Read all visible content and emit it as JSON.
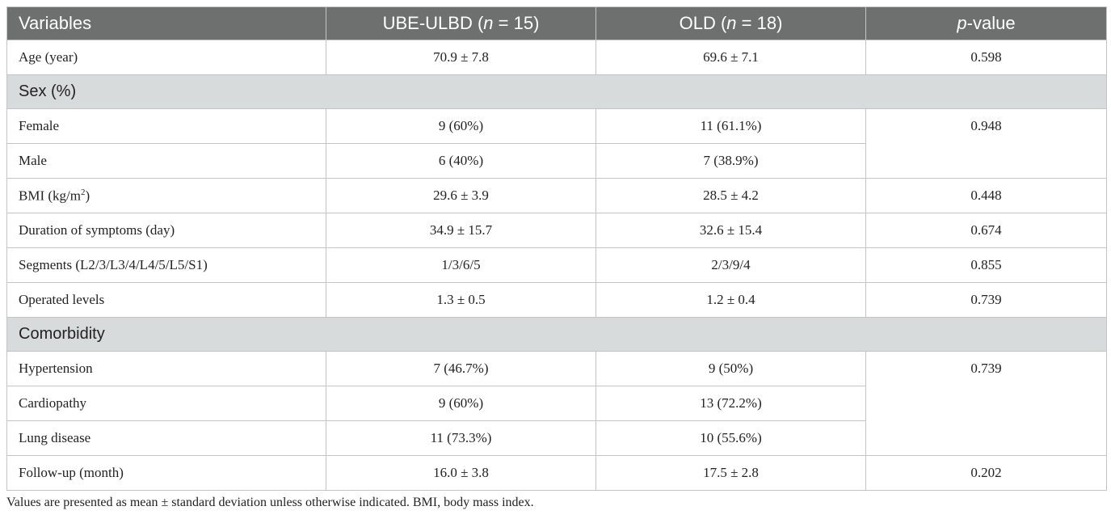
{
  "table": {
    "headers": {
      "variables": "Variables",
      "ube_prefix": "UBE-ULBD (",
      "ube_n": "n",
      "ube_suffix": " = 15)",
      "old_prefix": "OLD (",
      "old_n": "n",
      "old_suffix": " = 18)",
      "p_italic": "p",
      "p_suffix": "-value"
    },
    "age": {
      "label": "Age (year)",
      "ube": "70.9 ± 7.8",
      "old": "69.6 ± 7.1",
      "p": "0.598"
    },
    "sex_group": "Sex (%)",
    "female": {
      "label": "Female",
      "ube": "9 (60%)",
      "old": "11 (61.1%)"
    },
    "male": {
      "label": "Male",
      "ube": "6 (40%)",
      "old": "7 (38.9%)"
    },
    "sex_p": "0.948",
    "bmi": {
      "label_prefix": "BMI (kg/m",
      "label_sup": "2",
      "label_suffix": ")",
      "ube": "29.6 ± 3.9",
      "old": "28.5 ± 4.2",
      "p": "0.448"
    },
    "duration": {
      "label": "Duration of symptoms (day)",
      "ube": "34.9 ± 15.7",
      "old": "32.6 ± 15.4",
      "p": "0.674"
    },
    "segments": {
      "label": "Segments (L2/3/L3/4/L4/5/L5/S1)",
      "ube": "1/3/6/5",
      "old": "2/3/9/4",
      "p": "0.855"
    },
    "levels": {
      "label": "Operated levels",
      "ube": "1.3 ± 0.5",
      "old": "1.2 ± 0.4",
      "p": "0.739"
    },
    "comorbidity_group": "Comorbidity",
    "hypertension": {
      "label": "Hypertension",
      "ube": "7 (46.7%)",
      "old": "9 (50%)"
    },
    "cardiopathy": {
      "label": "Cardiopathy",
      "ube": "9 (60%)",
      "old": "13 (72.2%)"
    },
    "lung": {
      "label": "Lung disease",
      "ube": "11 (73.3%)",
      "old": "10 (55.6%)"
    },
    "comorbidity_p": "0.739",
    "followup": {
      "label": "Follow-up (month)",
      "ube": "16.0 ± 3.8",
      "old": "17.5 ± 2.8",
      "p": "0.202"
    }
  },
  "footnote": "Values are presented as mean ± standard deviation unless otherwise indicated. BMI, body mass index.",
  "colors": {
    "header_bg": "#6e7070",
    "group_bg": "#d8dbdb",
    "border": "#c4c4c4"
  }
}
